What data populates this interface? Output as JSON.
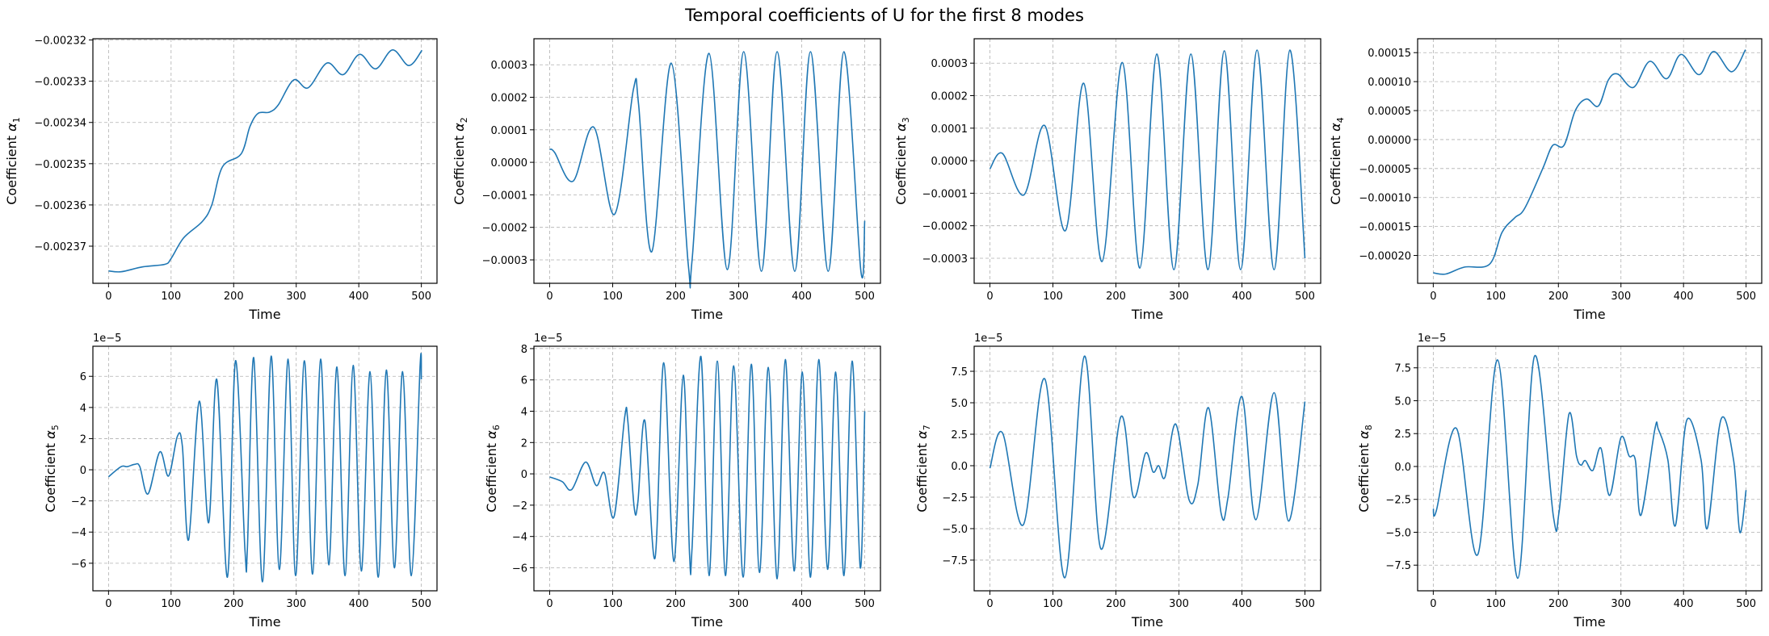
{
  "title": "Temporal coefficients of U for the first 8 modes",
  "line_color": "#1f77b4",
  "chart_data": [
    {
      "type": "line",
      "grid": true,
      "xlabel": "Time",
      "ylabel_text": "Coefficient ",
      "ylabel_symbol": "α",
      "ylabel_subscript": "1",
      "offset_text": "",
      "xlim": [
        -25,
        525
      ],
      "ylim": [
        -0.002379,
        -0.0023197
      ],
      "xticks": [
        0,
        100,
        200,
        300,
        400,
        500
      ],
      "xtick_labels": [
        "0",
        "100",
        "200",
        "300",
        "400",
        "500"
      ],
      "yticks": [
        -0.00237,
        -0.00236,
        -0.00235,
        -0.00234,
        -0.00233,
        -0.00232
      ],
      "ytick_labels": [
        "−0.00237",
        "−0.00236",
        "−0.00235",
        "−0.00234",
        "−0.00233",
        "−0.00232"
      ],
      "points": [
        [
          0,
          -0.002376
        ],
        [
          20,
          -0.0023762
        ],
        [
          55,
          -0.002375
        ],
        [
          90,
          -0.0023744
        ],
        [
          100,
          -0.002373
        ],
        [
          120,
          -0.002368
        ],
        [
          150,
          -0.002364
        ],
        [
          165,
          -0.00236
        ],
        [
          182,
          -0.0023508
        ],
        [
          212,
          -0.0023476
        ],
        [
          226,
          -0.002341
        ],
        [
          239,
          -0.0023378
        ],
        [
          257,
          -0.0023375
        ],
        [
          271,
          -0.0023358
        ],
        [
          296,
          -0.0023297
        ],
        [
          319,
          -0.0023316
        ],
        [
          349,
          -0.0023256
        ],
        [
          375,
          -0.0023284
        ],
        [
          401,
          -0.0023235
        ],
        [
          427,
          -0.002327
        ],
        [
          454,
          -0.0023224
        ],
        [
          480,
          -0.0023262
        ],
        [
          501,
          -0.0023225
        ]
      ]
    },
    {
      "type": "line",
      "grid": true,
      "xlabel": "Time",
      "ylabel_text": "Coefficient ",
      "ylabel_symbol": "α",
      "ylabel_subscript": "2",
      "offset_text": "",
      "xlim": [
        -25,
        525
      ],
      "ylim": [
        -0.000372,
        0.00038
      ],
      "xticks": [
        0,
        100,
        200,
        300,
        400,
        500
      ],
      "xtick_labels": [
        "0",
        "100",
        "200",
        "300",
        "400",
        "500"
      ],
      "yticks": [
        -0.0003,
        -0.0002,
        -0.0001,
        0,
        0.0001,
        0.0002,
        0.0003
      ],
      "ytick_labels": [
        "−0.0003",
        "−0.0002",
        "−0.0001",
        "0.0000",
        "0.0001",
        "0.0002",
        "0.0003"
      ],
      "points": [
        [
          0,
          4e-05
        ],
        [
          8,
          3e-05
        ],
        [
          37,
          -5.8e-05
        ],
        [
          70,
          0.000108
        ],
        [
          103,
          -0.00016
        ],
        [
          133,
          0.000225
        ],
        [
          141,
          0.00018
        ],
        [
          162,
          -0.000275
        ],
        [
          193,
          0.000305
        ],
        [
          220,
          -0.000315
        ],
        [
          226,
          -0.0003
        ],
        [
          253,
          0.000335
        ],
        [
          282,
          -0.00033
        ],
        [
          308,
          0.00034
        ],
        [
          336,
          -0.000335
        ],
        [
          361,
          0.00034
        ],
        [
          389,
          -0.000335
        ],
        [
          414,
          0.00034
        ],
        [
          442,
          -0.000335
        ],
        [
          467,
          0.00034
        ],
        [
          494,
          -0.000335
        ],
        [
          500,
          -0.00018
        ]
      ]
    },
    {
      "type": "line",
      "grid": true,
      "xlabel": "Time",
      "ylabel_text": "Coefficient ",
      "ylabel_symbol": "α",
      "ylabel_subscript": "3",
      "offset_text": "",
      "xlim": [
        -25,
        525
      ],
      "ylim": [
        -0.000377,
        0.000375
      ],
      "xticks": [
        0,
        100,
        200,
        300,
        400,
        500
      ],
      "xtick_labels": [
        "0",
        "100",
        "200",
        "300",
        "400",
        "500"
      ],
      "yticks": [
        -0.0003,
        -0.0002,
        -0.0001,
        0,
        0.0001,
        0.0002,
        0.0003
      ],
      "ytick_labels": [
        "−0.0003",
        "−0.0002",
        "−0.0001",
        "0.0000",
        "0.0001",
        "0.0002",
        "0.0003"
      ],
      "points": [
        [
          0,
          -2.5e-05
        ],
        [
          20,
          2.2e-05
        ],
        [
          54,
          -0.000105
        ],
        [
          87,
          0.000108
        ],
        [
          120,
          -0.000215
        ],
        [
          149,
          0.000238
        ],
        [
          178,
          -0.00031
        ],
        [
          210,
          0.000302
        ],
        [
          238,
          -0.00033
        ],
        [
          265,
          0.000328
        ],
        [
          292,
          -0.000335
        ],
        [
          319,
          0.000328
        ],
        [
          346,
          -0.000335
        ],
        [
          372,
          0.000338
        ],
        [
          398,
          -0.000335
        ],
        [
          424,
          0.00034
        ],
        [
          451,
          -0.000335
        ],
        [
          476,
          0.00034
        ],
        [
          500,
          -0.0003
        ]
      ]
    },
    {
      "type": "line",
      "grid": true,
      "xlabel": "Time",
      "ylabel_text": "Coefficient ",
      "ylabel_symbol": "α",
      "ylabel_subscript": "4",
      "offset_text": "",
      "xlim": [
        -25,
        525
      ],
      "ylim": [
        -0.000248,
        0.000174
      ],
      "xticks": [
        0,
        100,
        200,
        300,
        400,
        500
      ],
      "xtick_labels": [
        "0",
        "100",
        "200",
        "300",
        "400",
        "500"
      ],
      "yticks": [
        -0.0002,
        -0.00015,
        -0.0001,
        -5e-05,
        0,
        5e-05,
        0.0001,
        0.00015
      ],
      "ytick_labels": [
        "−0.00020",
        "−0.00015",
        "−0.00010",
        "−0.00005",
        "0.00000",
        "0.00005",
        "0.00010",
        "0.00015"
      ],
      "points": [
        [
          0,
          -0.00023
        ],
        [
          20,
          -0.000232
        ],
        [
          50,
          -0.00022
        ],
        [
          90,
          -0.000215
        ],
        [
          110,
          -0.00016
        ],
        [
          130,
          -0.000135
        ],
        [
          146,
          -0.000119
        ],
        [
          175,
          -5e-05
        ],
        [
          191,
          -1e-05
        ],
        [
          209,
          -1e-05
        ],
        [
          227,
          5e-05
        ],
        [
          245,
          7e-05
        ],
        [
          264,
          5.8e-05
        ],
        [
          280,
          0.000103
        ],
        [
          295,
          0.000113
        ],
        [
          320,
          9e-05
        ],
        [
          346,
          0.000135
        ],
        [
          373,
          0.000105
        ],
        [
          396,
          0.000147
        ],
        [
          425,
          0.000112
        ],
        [
          448,
          0.000152
        ],
        [
          477,
          0.000117
        ],
        [
          499,
          0.000155
        ]
      ]
    },
    {
      "type": "line",
      "grid": true,
      "xlabel": "Time",
      "ylabel_text": "Coefficient ",
      "ylabel_symbol": "α",
      "ylabel_subscript": "5",
      "offset_text": "1e−5",
      "xlim": [
        -25,
        525
      ],
      "ylim": [
        -7.77,
        7.93
      ],
      "xticks": [
        0,
        100,
        200,
        300,
        400,
        500
      ],
      "xtick_labels": [
        "0",
        "100",
        "200",
        "300",
        "400",
        "500"
      ],
      "yticks": [
        -6,
        -4,
        -2,
        0,
        2,
        4,
        6
      ],
      "ytick_labels": [
        "−6",
        "−4",
        "−2",
        "0",
        "2",
        "4",
        "6"
      ],
      "points": [
        [
          0,
          -0.45
        ],
        [
          20,
          0.2
        ],
        [
          30,
          0.2
        ],
        [
          42,
          0.35
        ],
        [
          50,
          0.2
        ],
        [
          63,
          -1.55
        ],
        [
          82,
          1.15
        ],
        [
          96,
          -0.4
        ],
        [
          110,
          2.15
        ],
        [
          118,
          1.5
        ],
        [
          128,
          -4.5
        ],
        [
          145,
          4.4
        ],
        [
          160,
          -3.4
        ],
        [
          173,
          5.8
        ],
        [
          190,
          -6.9
        ],
        [
          203,
          7.0
        ],
        [
          218,
          -5.1
        ],
        [
          222,
          -5.0
        ],
        [
          232,
          7.2
        ],
        [
          246,
          -7.2
        ],
        [
          260,
          7.3
        ],
        [
          273,
          -6.4
        ],
        [
          287,
          7.1
        ],
        [
          299,
          -6.8
        ],
        [
          313,
          7.0
        ],
        [
          326,
          -6.7
        ],
        [
          339,
          7.1
        ],
        [
          352,
          -6.1
        ],
        [
          365,
          6.6
        ],
        [
          378,
          -6.8
        ],
        [
          391,
          6.7
        ],
        [
          404,
          -6.5
        ],
        [
          418,
          6.3
        ],
        [
          431,
          -6.9
        ],
        [
          444,
          6.4
        ],
        [
          457,
          -6.3
        ],
        [
          470,
          6.3
        ],
        [
          484,
          -6.8
        ],
        [
          498,
          6.7
        ],
        [
          500,
          5.8
        ]
      ]
    },
    {
      "type": "line",
      "grid": true,
      "xlabel": "Time",
      "ylabel_text": "Coefficient ",
      "ylabel_symbol": "α",
      "ylabel_subscript": "6",
      "offset_text": "1e−5",
      "xlim": [
        -25,
        525
      ],
      "ylim": [
        -7.47,
        8.15
      ],
      "xticks": [
        0,
        100,
        200,
        300,
        400,
        500
      ],
      "xtick_labels": [
        "0",
        "100",
        "200",
        "300",
        "400",
        "500"
      ],
      "yticks": [
        -6,
        -4,
        -2,
        0,
        2,
        4,
        6,
        8
      ],
      "ytick_labels": [
        "−6",
        "−4",
        "−2",
        "0",
        "2",
        "4",
        "6",
        "8"
      ],
      "points": [
        [
          0,
          -0.2
        ],
        [
          20,
          -0.5
        ],
        [
          35,
          -1.0
        ],
        [
          57,
          0.75
        ],
        [
          74,
          -0.75
        ],
        [
          87,
          0.05
        ],
        [
          102,
          -2.75
        ],
        [
          119,
          3.6
        ],
        [
          124,
          3.4
        ],
        [
          134,
          -2.1
        ],
        [
          140,
          -1.8
        ],
        [
          151,
          3.4
        ],
        [
          167,
          -5.4
        ],
        [
          181,
          7.1
        ],
        [
          197,
          -5.6
        ],
        [
          212,
          6.3
        ],
        [
          222,
          -5.2
        ],
        [
          226,
          -4.7
        ],
        [
          240,
          7.5
        ],
        [
          253,
          -6.5
        ],
        [
          266,
          7.2
        ],
        [
          279,
          -6.5
        ],
        [
          292,
          6.9
        ],
        [
          307,
          -6.6
        ],
        [
          320,
          7.0
        ],
        [
          333,
          -6.3
        ],
        [
          347,
          6.8
        ],
        [
          361,
          -6.7
        ],
        [
          374,
          7.3
        ],
        [
          388,
          -6.2
        ],
        [
          401,
          6.5
        ],
        [
          414,
          -6.6
        ],
        [
          427,
          7.3
        ],
        [
          441,
          -6.1
        ],
        [
          454,
          6.5
        ],
        [
          467,
          -6.5
        ],
        [
          480,
          7.2
        ],
        [
          493,
          -6.0
        ],
        [
          500,
          4.0
        ]
      ]
    },
    {
      "type": "line",
      "grid": true,
      "xlabel": "Time",
      "ylabel_text": "Coefficient ",
      "ylabel_symbol": "α",
      "ylabel_subscript": "7",
      "offset_text": "1e−5",
      "xlim": [
        -25,
        525
      ],
      "ylim": [
        -9.94,
        9.49
      ],
      "xticks": [
        0,
        100,
        200,
        300,
        400,
        500
      ],
      "xtick_labels": [
        "0",
        "100",
        "200",
        "300",
        "400",
        "500"
      ],
      "yticks": [
        -7.5,
        -5,
        -2.5,
        0,
        2.5,
        5,
        7.5
      ],
      "ytick_labels": [
        "−7.5",
        "−5.0",
        "−2.5",
        "0.0",
        "2.5",
        "5.0",
        "7.5"
      ],
      "points": [
        [
          0,
          -0.2
        ],
        [
          20,
          2.6
        ],
        [
          53,
          -4.7
        ],
        [
          87,
          6.9
        ],
        [
          119,
          -8.9
        ],
        [
          150,
          8.7
        ],
        [
          176,
          -6.6
        ],
        [
          208,
          3.9
        ],
        [
          228,
          -2.5
        ],
        [
          247,
          1.0
        ],
        [
          259,
          -0.5
        ],
        [
          268,
          0.0
        ],
        [
          278,
          -0.9
        ],
        [
          295,
          3.3
        ],
        [
          316,
          -2.7
        ],
        [
          330,
          -1.5
        ],
        [
          347,
          4.6
        ],
        [
          367,
          -3.8
        ],
        [
          378,
          -2.5
        ],
        [
          400,
          5.5
        ],
        [
          422,
          -4.3
        ],
        [
          451,
          5.8
        ],
        [
          474,
          -4.4
        ],
        [
          500,
          5.1
        ]
      ]
    },
    {
      "type": "line",
      "grid": true,
      "xlabel": "Time",
      "ylabel_text": "Coefficient ",
      "ylabel_symbol": "α",
      "ylabel_subscript": "8",
      "offset_text": "1e−5",
      "xlim": [
        -25,
        525
      ],
      "ylim": [
        -9.45,
        9.14
      ],
      "xticks": [
        0,
        100,
        200,
        300,
        400,
        500
      ],
      "xtick_labels": [
        "0",
        "100",
        "200",
        "300",
        "400",
        "500"
      ],
      "yticks": [
        -7.5,
        -5,
        -2.5,
        0,
        2.5,
        5,
        7.5
      ],
      "ytick_labels": [
        "−7.5",
        "−5.0",
        "−2.5",
        "0.0",
        "2.5",
        "5.0",
        "7.5"
      ],
      "points": [
        [
          0,
          -3.2
        ],
        [
          5,
          -3.35
        ],
        [
          37,
          2.9
        ],
        [
          71,
          -6.7
        ],
        [
          103,
          8.1
        ],
        [
          135,
          -8.5
        ],
        [
          162,
          8.4
        ],
        [
          192,
          -3.8
        ],
        [
          201,
          -3.5
        ],
        [
          217,
          4.0
        ],
        [
          229,
          0.8
        ],
        [
          236,
          0.1
        ],
        [
          243,
          0.45
        ],
        [
          255,
          -0.3
        ],
        [
          268,
          1.4
        ],
        [
          282,
          -2.2
        ],
        [
          300,
          2.2
        ],
        [
          313,
          0.8
        ],
        [
          323,
          0.5
        ],
        [
          332,
          -3.7
        ],
        [
          354,
          2.8
        ],
        [
          360,
          2.8
        ],
        [
          375,
          0.5
        ],
        [
          387,
          -4.5
        ],
        [
          405,
          3.5
        ],
        [
          428,
          0.5
        ],
        [
          438,
          -4.7
        ],
        [
          460,
          3.6
        ],
        [
          480,
          0.5
        ],
        [
          490,
          -5.0
        ],
        [
          500,
          -1.8
        ]
      ]
    }
  ]
}
